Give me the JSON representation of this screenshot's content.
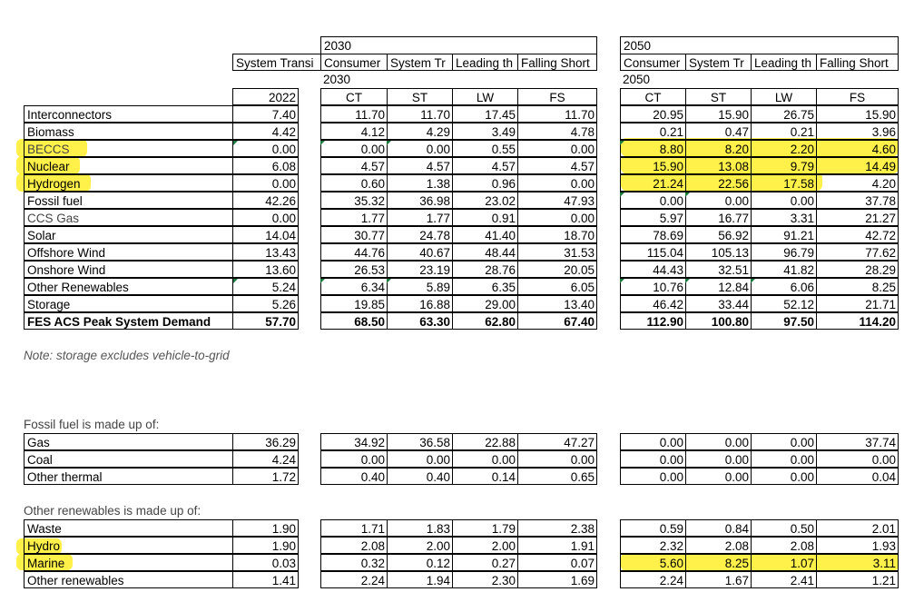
{
  "main": {
    "year2022_header": "2022",
    "group_2030": {
      "year": "2030",
      "subyear": "2030",
      "scenarios": [
        "Consumer",
        "System Tr",
        "Leading th",
        "Falling Short"
      ],
      "codes": [
        "CT",
        "ST",
        "LW",
        "FS"
      ]
    },
    "group_2050": {
      "year": "2050",
      "subyear": "2050",
      "scenarios": [
        "Consumer",
        "System Tr",
        "Leading th",
        "Falling Short"
      ],
      "codes": [
        "CT",
        "ST",
        "LW",
        "FS"
      ]
    },
    "left_header": "System Transi",
    "rows": [
      {
        "label": "Interconnectors",
        "v2022": "7.40",
        "v2030": [
          "11.70",
          "11.70",
          "17.45",
          "11.70"
        ],
        "v2050": [
          "20.95",
          "15.90",
          "26.75",
          "15.90"
        ]
      },
      {
        "label": "Biomass",
        "v2022": "4.42",
        "v2030": [
          "4.12",
          "4.29",
          "3.49",
          "4.78"
        ],
        "v2050": [
          "0.21",
          "0.47",
          "0.21",
          "3.96"
        ]
      },
      {
        "label": "BECCS",
        "v2022": "0.00",
        "v2030": [
          "0.00",
          "0.00",
          "0.55",
          "0.00"
        ],
        "v2050": [
          "8.80",
          "8.20",
          "2.20",
          "4.60"
        ]
      },
      {
        "label": "Nuclear",
        "v2022": "6.08",
        "v2030": [
          "4.57",
          "4.57",
          "4.57",
          "4.57"
        ],
        "v2050": [
          "15.90",
          "13.08",
          "9.79",
          "14.49"
        ]
      },
      {
        "label": "Hydrogen",
        "v2022": "0.00",
        "v2030": [
          "0.60",
          "1.38",
          "0.96",
          "0.00"
        ],
        "v2050": [
          "21.24",
          "22.56",
          "17.58",
          "4.20"
        ]
      },
      {
        "label": "Fossil fuel",
        "v2022": "42.26",
        "v2030": [
          "35.32",
          "36.98",
          "23.02",
          "47.93"
        ],
        "v2050": [
          "0.00",
          "0.00",
          "0.00",
          "37.78"
        ]
      },
      {
        "label": "CCS Gas",
        "v2022": "0.00",
        "v2030": [
          "1.77",
          "1.77",
          "0.91",
          "0.00"
        ],
        "v2050": [
          "5.97",
          "16.77",
          "3.31",
          "21.27"
        ]
      },
      {
        "label": "Solar",
        "v2022": "14.04",
        "v2030": [
          "30.77",
          "24.78",
          "41.40",
          "18.70"
        ],
        "v2050": [
          "78.69",
          "56.92",
          "91.21",
          "42.72"
        ]
      },
      {
        "label": "Offshore Wind",
        "v2022": "13.43",
        "v2030": [
          "44.76",
          "40.67",
          "48.44",
          "31.53"
        ],
        "v2050": [
          "115.04",
          "105.13",
          "96.79",
          "77.62"
        ]
      },
      {
        "label": "Onshore Wind",
        "v2022": "13.60",
        "v2030": [
          "26.53",
          "23.19",
          "28.76",
          "20.05"
        ],
        "v2050": [
          "44.43",
          "32.51",
          "41.82",
          "28.29"
        ]
      },
      {
        "label": "Other Renewables",
        "v2022": "5.24",
        "v2030": [
          "6.34",
          "5.89",
          "6.35",
          "6.05"
        ],
        "v2050": [
          "10.76",
          "12.84",
          "6.06",
          "8.25"
        ]
      },
      {
        "label": "Storage",
        "v2022": "5.26",
        "v2030": [
          "19.85",
          "16.88",
          "29.00",
          "13.40"
        ],
        "v2050": [
          "46.42",
          "33.44",
          "52.12",
          "21.71"
        ]
      },
      {
        "label": "FES ACS Peak System Demand",
        "v2022": "57.70",
        "v2030": [
          "68.50",
          "63.30",
          "62.80",
          "67.40"
        ],
        "v2050": [
          "112.90",
          "100.80",
          "97.50",
          "114.20"
        ]
      }
    ],
    "note": "Note: storage excludes vehicle-to-grid"
  },
  "fossil": {
    "title": "Fossil fuel is made up of:",
    "rows": [
      {
        "label": "Gas",
        "v2022": "36.29",
        "v2030": [
          "34.92",
          "36.58",
          "22.88",
          "47.27"
        ],
        "v2050": [
          "0.00",
          "0.00",
          "0.00",
          "37.74"
        ]
      },
      {
        "label": "Coal",
        "v2022": "4.24",
        "v2030": [
          "0.00",
          "0.00",
          "0.00",
          "0.00"
        ],
        "v2050": [
          "0.00",
          "0.00",
          "0.00",
          "0.00"
        ]
      },
      {
        "label": "Other thermal",
        "v2022": "1.72",
        "v2030": [
          "0.40",
          "0.40",
          "0.14",
          "0.65"
        ],
        "v2050": [
          "0.00",
          "0.00",
          "0.00",
          "0.04"
        ]
      }
    ]
  },
  "renewables": {
    "title": "Other renewables is made up of:",
    "rows": [
      {
        "label": "Waste",
        "v2022": "1.90",
        "v2030": [
          "1.71",
          "1.83",
          "1.79",
          "2.38"
        ],
        "v2050": [
          "0.59",
          "0.84",
          "0.50",
          "2.01"
        ]
      },
      {
        "label": "Hydro",
        "v2022": "1.90",
        "v2030": [
          "2.08",
          "2.00",
          "2.00",
          "1.91"
        ],
        "v2050": [
          "2.32",
          "2.08",
          "2.08",
          "1.93"
        ]
      },
      {
        "label": "Marine",
        "v2022": "0.03",
        "v2030": [
          "0.32",
          "0.12",
          "0.27",
          "0.07"
        ],
        "v2050": [
          "5.60",
          "8.25",
          "1.07",
          "3.11"
        ]
      },
      {
        "label": "Other renewables",
        "v2022": "1.41",
        "v2030": [
          "2.24",
          "1.94",
          "2.30",
          "1.69"
        ],
        "v2050": [
          "2.24",
          "1.67",
          "2.41",
          "1.21"
        ]
      }
    ]
  },
  "highlight_color": "#ffef2a"
}
